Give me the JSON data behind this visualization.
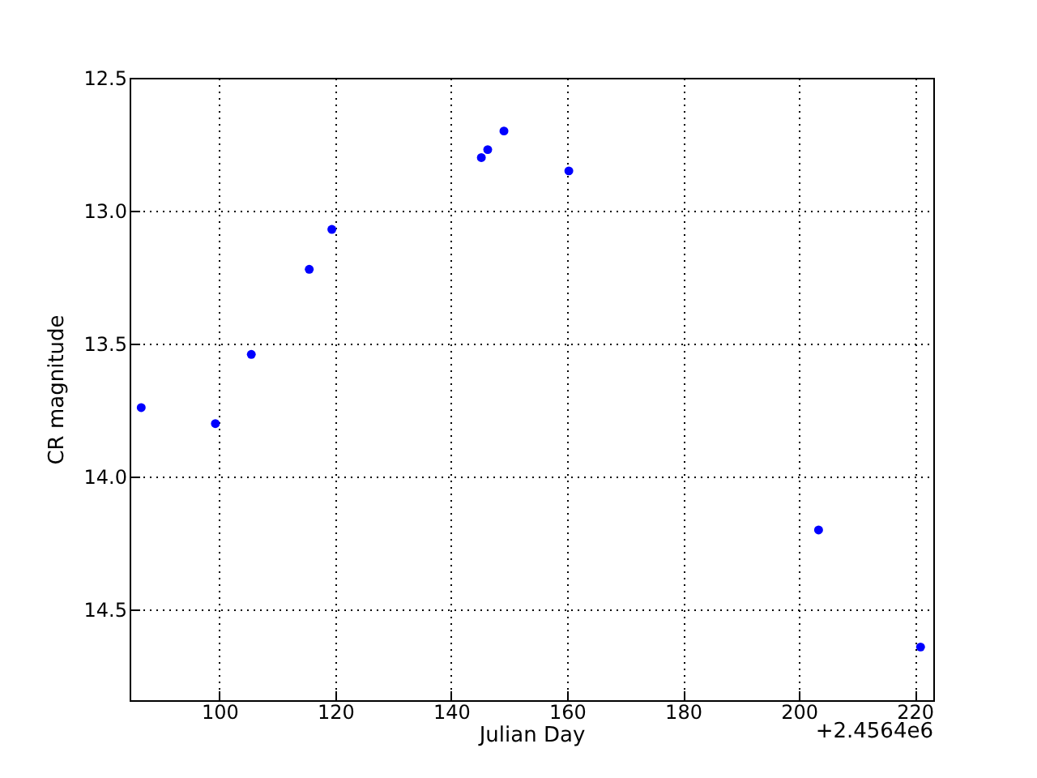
{
  "chart_data": {
    "type": "scatter",
    "xlabel": "Julian Day",
    "ylabel": "CR magnitude",
    "x": [
      86.5,
      99.3,
      105.5,
      115.5,
      119.4,
      145.2,
      146.3,
      149.1,
      160.3,
      203.4,
      221.0
    ],
    "series": [
      {
        "color": "#0000ff",
        "values": [
          13.74,
          13.8,
          13.54,
          13.22,
          13.07,
          12.8,
          12.77,
          12.7,
          12.85,
          14.2,
          14.64
        ]
      }
    ],
    "xlim": [
      84.5,
      223.2
    ],
    "xticks": [
      100,
      120,
      140,
      160,
      180,
      200,
      220
    ],
    "ylim": [
      14.84,
      12.5
    ],
    "yticks": [
      12.5,
      {
        "value": 13,
        "label": "13.0"
      },
      13.5,
      {
        "value": 14,
        "label": "14.0"
      },
      14.5
    ],
    "annotations": [
      "+2.4564e6"
    ],
    "grid": true,
    "marker": "circle"
  }
}
